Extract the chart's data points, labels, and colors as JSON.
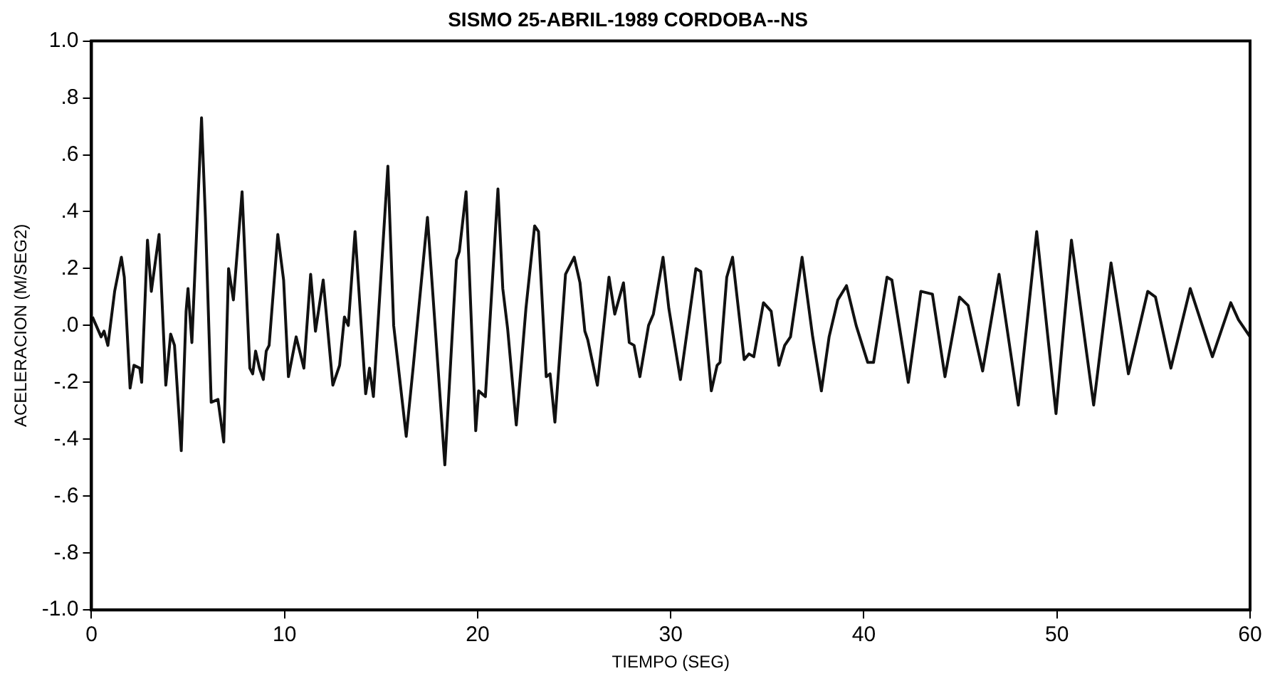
{
  "chart_data": {
    "type": "line",
    "title": "SISMO 25-ABRIL-1989 CORDOBA--NS",
    "xlabel": "TIEMPO (SEG)",
    "ylabel": "ACELERACION (M/SEG2)",
    "xlim": [
      0,
      60
    ],
    "xticks": [
      0,
      10,
      20,
      30,
      40,
      50,
      60
    ],
    "ylim": [
      -1,
      1
    ],
    "yticks": [
      {
        "value": -1,
        "label": "-1.0"
      },
      {
        "value": -0.8,
        "label": "-.8"
      },
      {
        "value": -0.6,
        "label": "-.6"
      },
      {
        "value": -0.4,
        "label": "-.4"
      },
      {
        "value": -0.2,
        "label": "-.2"
      },
      {
        "value": 0,
        "label": ".0"
      },
      {
        "value": 0.2,
        "label": ".2"
      },
      {
        "value": 0.4,
        "label": ".4"
      },
      {
        "value": 0.6,
        "label": ".6"
      },
      {
        "value": 0.8,
        "label": ".8"
      },
      {
        "value": 1,
        "label": "1.0"
      }
    ],
    "grid": false,
    "legend": false,
    "marker": "none",
    "line_style": "solid",
    "series": [
      {
        "color": "#111111",
        "x": [
          0.05,
          0.5,
          0.65,
          0.85,
          1.2,
          1.55,
          1.7,
          2.0,
          2.2,
          2.5,
          2.6,
          2.9,
          3.1,
          3.5,
          3.85,
          4.1,
          4.3,
          4.65,
          4.9,
          5.0,
          5.2,
          5.7,
          5.9,
          6.2,
          6.55,
          6.85,
          7.1,
          7.35,
          7.8,
          8.2,
          8.35,
          8.5,
          8.7,
          8.9,
          9.05,
          9.2,
          9.65,
          9.95,
          10.2,
          10.6,
          11.0,
          11.35,
          11.6,
          12.0,
          12.5,
          12.85,
          13.1,
          13.3,
          13.65,
          14.2,
          14.4,
          14.6,
          15.35,
          15.65,
          16.3,
          16.67,
          17.4,
          18.3,
          18.9,
          19.05,
          19.4,
          19.9,
          20.05,
          20.4,
          21.05,
          21.3,
          21.55,
          22.0,
          22.5,
          22.95,
          23.15,
          23.55,
          23.75,
          24.0,
          24.55,
          25.0,
          25.3,
          25.55,
          25.7,
          26.2,
          26.8,
          27.1,
          27.55,
          27.85,
          28.1,
          28.4,
          28.85,
          29.1,
          29.6,
          29.9,
          30.5,
          31.3,
          31.55,
          32.1,
          32.4,
          32.55,
          32.9,
          33.2,
          33.8,
          34.05,
          34.3,
          34.8,
          35.2,
          35.6,
          35.9,
          36.2,
          36.8,
          37.35,
          37.8,
          38.2,
          38.65,
          39.1,
          39.6,
          40.2,
          40.5,
          41.2,
          41.45,
          42.3,
          42.95,
          43.55,
          44.2,
          44.95,
          45.4,
          46.15,
          47.0,
          48.0,
          48.95,
          49.95,
          50.75,
          51.9,
          52.8,
          53.7,
          54.7,
          55.1,
          55.9,
          56.9,
          58.05,
          59.0,
          59.4,
          60
        ],
        "values": [
          0.03,
          -0.04,
          -0.02,
          -0.07,
          0.12,
          0.24,
          0.17,
          -0.22,
          -0.14,
          -0.15,
          -0.2,
          0.3,
          0.12,
          0.32,
          -0.21,
          -0.03,
          -0.07,
          -0.44,
          0.05,
          0.13,
          -0.06,
          0.73,
          0.38,
          -0.27,
          -0.26,
          -0.41,
          0.2,
          0.09,
          0.47,
          -0.15,
          -0.17,
          -0.09,
          -0.15,
          -0.19,
          -0.09,
          -0.07,
          0.32,
          0.16,
          -0.18,
          -0.04,
          -0.15,
          0.18,
          -0.02,
          0.16,
          -0.21,
          -0.14,
          0.03,
          0.0,
          0.33,
          -0.24,
          -0.15,
          -0.25,
          0.56,
          0.0,
          -0.39,
          -0.14,
          0.38,
          -0.49,
          0.23,
          0.26,
          0.47,
          -0.37,
          -0.23,
          -0.25,
          0.48,
          0.13,
          -0.01,
          -0.35,
          0.06,
          0.35,
          0.33,
          -0.18,
          -0.17,
          -0.34,
          0.18,
          0.24,
          0.15,
          -0.02,
          -0.05,
          -0.21,
          0.17,
          0.04,
          0.15,
          -0.06,
          -0.07,
          -0.18,
          0.0,
          0.04,
          0.24,
          0.06,
          -0.19,
          0.2,
          0.19,
          -0.23,
          -0.14,
          -0.13,
          0.17,
          0.24,
          -0.12,
          -0.1,
          -0.11,
          0.08,
          0.05,
          -0.14,
          -0.07,
          -0.04,
          0.24,
          -0.04,
          -0.23,
          -0.04,
          0.09,
          0.14,
          0.0,
          -0.13,
          -0.13,
          0.17,
          0.16,
          -0.2,
          0.12,
          0.11,
          -0.18,
          0.1,
          0.07,
          -0.16,
          0.18,
          -0.28,
          0.33,
          -0.31,
          0.3,
          -0.28,
          0.22,
          -0.17,
          0.12,
          0.1,
          -0.15,
          0.13,
          -0.11,
          0.08,
          0.02,
          -0.04
        ]
      }
    ]
  }
}
